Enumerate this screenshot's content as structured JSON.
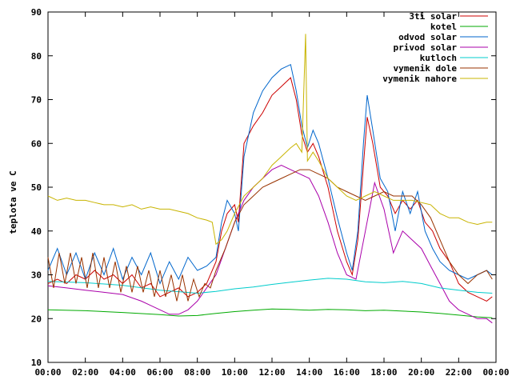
{
  "chart_data": {
    "type": "line",
    "title": "",
    "xlabel": "",
    "ylabel": "teplota ve C",
    "xlim": [
      0,
      24
    ],
    "ylim": [
      10,
      90
    ],
    "grid": false,
    "legend_position": "top-right",
    "x_ticks": [
      "00:00",
      "02:00",
      "04:00",
      "06:00",
      "08:00",
      "10:00",
      "12:00",
      "14:00",
      "16:00",
      "18:00",
      "20:00",
      "22:00",
      "00:00"
    ],
    "y_ticks": [
      10,
      20,
      30,
      40,
      50,
      60,
      70,
      80,
      90
    ],
    "series": [
      {
        "name": "3ti solar",
        "color": "#cc0000",
        "x": [
          0,
          0.5,
          1,
          1.5,
          2,
          2.5,
          3,
          3.5,
          4,
          4.5,
          5,
          5.5,
          6,
          6.5,
          7,
          7.5,
          8,
          8.5,
          9,
          9.3,
          9.6,
          10,
          10.2,
          10.5,
          11,
          11.5,
          12,
          12.5,
          13,
          13.3,
          13.6,
          13.9,
          14.2,
          14.5,
          15,
          15.5,
          16,
          16.3,
          16.6,
          16.9,
          17.1,
          17.4,
          17.8,
          18.2,
          18.6,
          19,
          19.4,
          19.8,
          20.2,
          20.6,
          21,
          21.5,
          22,
          22.5,
          23,
          23.5,
          23.8
        ],
        "y": [
          28,
          29,
          28,
          30,
          29,
          31,
          29,
          30,
          28,
          30,
          27,
          28,
          25,
          26,
          27,
          25,
          26,
          28,
          33,
          40,
          44,
          46,
          42,
          60,
          64,
          67,
          71,
          73,
          75,
          70,
          62,
          58,
          60,
          57,
          50,
          40,
          33,
          30,
          38,
          55,
          66,
          60,
          50,
          48,
          44,
          47,
          45,
          47,
          42,
          40,
          36,
          33,
          28,
          26,
          25,
          24,
          25
        ]
      },
      {
        "name": "kotel",
        "color": "#00aa00",
        "x": [
          0,
          2,
          4,
          6,
          7,
          8,
          9,
          10,
          11,
          12,
          13,
          14,
          15,
          16,
          17,
          18,
          19,
          20,
          21,
          22,
          23,
          23.8
        ],
        "y": [
          22,
          21.8,
          21.4,
          20.9,
          20.6,
          20.7,
          21.2,
          21.6,
          21.9,
          22.2,
          22.1,
          21.9,
          22.1,
          22.0,
          21.8,
          21.9,
          21.7,
          21.5,
          21.2,
          20.8,
          20.4,
          20.2
        ]
      },
      {
        "name": "odvod solar",
        "color": "#0066cc",
        "x": [
          0,
          0.5,
          1,
          1.5,
          2,
          2.5,
          3,
          3.5,
          4,
          4.5,
          5,
          5.5,
          6,
          6.5,
          7,
          7.5,
          8,
          8.5,
          9,
          9.3,
          9.6,
          10,
          10.2,
          10.5,
          11,
          11.5,
          12,
          12.5,
          13,
          13.3,
          13.6,
          13.9,
          14.2,
          14.5,
          15,
          15.5,
          16,
          16.3,
          16.6,
          16.9,
          17.1,
          17.4,
          17.8,
          18.2,
          18.6,
          19,
          19.4,
          19.8,
          20.2,
          20.6,
          21,
          21.5,
          22,
          22.5,
          23,
          23.5,
          23.8
        ],
        "y": [
          31,
          36,
          30,
          35,
          29,
          35,
          30,
          36,
          29,
          34,
          30,
          35,
          28,
          33,
          29,
          34,
          31,
          32,
          34,
          42,
          47,
          44,
          40,
          57,
          67,
          72,
          75,
          77,
          78,
          72,
          64,
          59,
          63,
          60,
          52,
          43,
          35,
          31,
          40,
          60,
          71,
          63,
          52,
          49,
          40,
          49,
          44,
          49,
          40,
          36,
          33,
          31,
          30,
          29,
          30,
          31,
          30
        ]
      },
      {
        "name": "privod solar",
        "color": "#aa00aa",
        "x": [
          0,
          1,
          2,
          3,
          4,
          5,
          5.5,
          6,
          6.5,
          7,
          7.5,
          8,
          8.5,
          9,
          9.5,
          10,
          10.5,
          11,
          11.5,
          12,
          12.5,
          13,
          13.5,
          14,
          14.5,
          15,
          15.5,
          16,
          16.5,
          17,
          17.5,
          18,
          18.5,
          19,
          19.5,
          20,
          20.5,
          21,
          21.5,
          22,
          22.5,
          23,
          23.5,
          23.8
        ],
        "y": [
          27.5,
          27,
          26.5,
          26,
          25.5,
          24,
          23,
          22,
          21,
          21,
          22,
          24,
          27,
          30,
          36,
          42,
          47,
          50,
          52,
          54,
          55,
          54,
          53,
          52,
          48,
          42,
          35,
          30,
          29,
          40,
          51,
          45,
          35,
          40,
          38,
          36,
          32,
          28,
          24,
          22,
          21,
          20,
          20,
          19
        ]
      },
      {
        "name": "kutloch",
        "color": "#00cccc",
        "x": [
          0,
          2,
          4,
          6,
          8,
          9,
          10,
          11,
          12,
          13,
          14,
          15,
          16,
          17,
          18,
          19,
          20,
          21,
          22,
          23,
          23.8
        ],
        "y": [
          28.5,
          28.2,
          27.6,
          26.5,
          25.8,
          26.2,
          26.8,
          27.2,
          27.8,
          28.3,
          28.8,
          29.2,
          29.0,
          28.4,
          28.2,
          28.5,
          28.0,
          27.0,
          26.5,
          26.0,
          25.8
        ]
      },
      {
        "name": "vymenik dole",
        "color": "#993300",
        "x": [
          0,
          0.3,
          0.6,
          0.9,
          1.2,
          1.5,
          1.8,
          2.1,
          2.4,
          2.7,
          3,
          3.3,
          3.6,
          3.9,
          4.2,
          4.5,
          4.8,
          5.1,
          5.4,
          5.7,
          6,
          6.3,
          6.6,
          6.9,
          7.2,
          7.5,
          7.8,
          8.1,
          8.4,
          8.7,
          9,
          9.5,
          10,
          10.5,
          11,
          11.5,
          12,
          12.5,
          13,
          13.5,
          14,
          14.5,
          15,
          15.5,
          16,
          16.5,
          17,
          17.5,
          18,
          18.5,
          19,
          19.5,
          20,
          20.5,
          21,
          21.5,
          22,
          22.5,
          23,
          23.5,
          23.8
        ],
        "y": [
          34,
          27,
          35,
          28,
          35,
          28,
          34,
          27,
          35,
          27,
          34,
          27,
          33,
          26,
          32,
          26,
          32,
          26,
          31,
          25,
          31,
          25,
          30,
          24,
          30,
          24,
          29,
          25,
          28,
          27,
          31,
          36,
          42,
          46,
          48,
          50,
          51,
          52,
          53,
          54,
          54,
          53,
          52,
          50,
          49,
          48,
          47,
          48,
          49,
          48,
          48,
          48,
          46,
          43,
          38,
          33,
          30,
          28,
          30,
          31,
          29
        ]
      },
      {
        "name": "vymenik nahore",
        "color": "#c8b400",
        "x": [
          0,
          0.5,
          1,
          1.5,
          2,
          2.5,
          3,
          3.5,
          4,
          4.5,
          5,
          5.5,
          6,
          6.5,
          7,
          7.5,
          8,
          8.5,
          8.8,
          9,
          9.3,
          9.6,
          10,
          10.5,
          11,
          11.5,
          12,
          12.5,
          13,
          13.3,
          13.6,
          13.8,
          13.9,
          14.2,
          14.5,
          15,
          15.5,
          16,
          16.5,
          17,
          17.5,
          18,
          18.5,
          19,
          19.5,
          20,
          20.5,
          21,
          21.5,
          22,
          22.5,
          23,
          23.5,
          23.8
        ],
        "y": [
          48,
          47,
          47.5,
          47,
          47,
          46.5,
          46,
          46,
          45.5,
          46,
          45,
          45.5,
          45,
          45,
          44.5,
          44,
          43,
          42.5,
          42,
          37,
          38,
          40,
          44,
          48,
          50,
          52,
          55,
          57,
          59,
          60,
          58,
          85,
          56,
          58,
          56,
          52,
          50,
          48,
          47,
          48,
          49,
          48,
          47,
          47,
          47,
          46.5,
          46,
          44,
          43,
          43,
          42,
          41.5,
          42,
          42
        ]
      }
    ]
  }
}
